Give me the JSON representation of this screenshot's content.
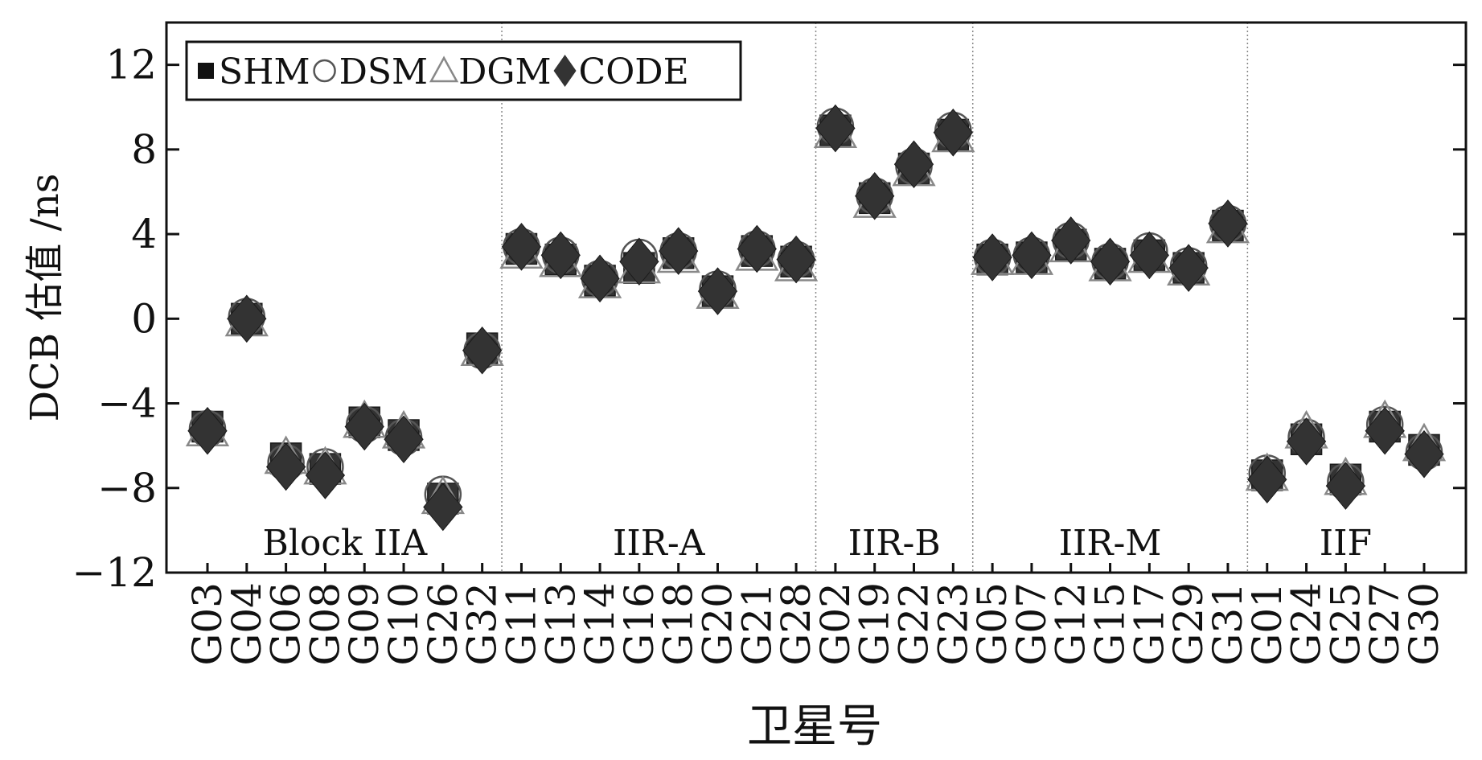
{
  "chart_data": {
    "type": "scatter",
    "title": "",
    "xlabel": "卫星号",
    "ylabel": "DCB 估值 /ns",
    "ylim": [
      -12,
      14
    ],
    "yticks": [
      -12,
      -8,
      -4,
      0,
      4,
      8,
      12
    ],
    "ytick_labels": [
      "−12",
      "−8",
      "−4",
      "0",
      "4",
      "8",
      "12"
    ],
    "grid": false,
    "legend_position": "top-left",
    "categories": [
      "G03",
      "G04",
      "G06",
      "G08",
      "G09",
      "G10",
      "G26",
      "G32",
      "G11",
      "G13",
      "G14",
      "G16",
      "G18",
      "G20",
      "G21",
      "G28",
      "G02",
      "G19",
      "G22",
      "G23",
      "G05",
      "G07",
      "G12",
      "G15",
      "G17",
      "G29",
      "G31",
      "G01",
      "G24",
      "G25",
      "G27",
      "G30"
    ],
    "groups": [
      {
        "label": "Block IIA",
        "start": 0,
        "end": 7
      },
      {
        "label": "IIR-A",
        "start": 8,
        "end": 15
      },
      {
        "label": "IIR-B",
        "start": 16,
        "end": 19
      },
      {
        "label": "IIR-M",
        "start": 20,
        "end": 26
      },
      {
        "label": "IIF",
        "start": 27,
        "end": 31
      }
    ],
    "series": [
      {
        "name": "SHM",
        "marker": "square",
        "values": [
          -5.1,
          0.0,
          -6.6,
          -7.1,
          -4.9,
          -5.5,
          -8.5,
          -1.4,
          3.3,
          2.8,
          1.8,
          2.4,
          3.1,
          1.3,
          3.2,
          2.7,
          8.9,
          5.7,
          7.1,
          8.7,
          2.8,
          2.9,
          3.5,
          2.6,
          3.0,
          2.4,
          4.4,
          -7.4,
          -5.7,
          -7.6,
          -5.1,
          -6.2
        ]
      },
      {
        "name": "DSM",
        "marker": "circle",
        "values": [
          -5.2,
          0.1,
          -6.8,
          -7.0,
          -5.0,
          -5.6,
          -8.3,
          -1.5,
          3.4,
          3.0,
          1.9,
          2.9,
          3.2,
          1.4,
          3.3,
          2.8,
          9.1,
          5.8,
          7.2,
          8.9,
          2.9,
          3.0,
          3.7,
          2.7,
          3.2,
          2.5,
          4.5,
          -7.3,
          -5.6,
          -7.7,
          -5.0,
          -6.3
        ]
      },
      {
        "name": "DGM",
        "marker": "triangle",
        "values": [
          -5.3,
          -0.1,
          -6.6,
          -7.1,
          -4.9,
          -5.4,
          -8.5,
          -1.5,
          3.1,
          2.7,
          1.7,
          2.4,
          2.9,
          1.2,
          3.0,
          2.5,
          8.8,
          5.5,
          7.0,
          8.6,
          2.8,
          2.8,
          3.4,
          2.5,
          2.9,
          2.3,
          4.3,
          -7.4,
          -5.4,
          -7.6,
          -4.9,
          -6.0
        ]
      },
      {
        "name": "CODE",
        "marker": "diamond",
        "values": [
          -5.3,
          0.0,
          -7.0,
          -7.4,
          -5.1,
          -5.7,
          -8.9,
          -1.5,
          3.4,
          3.0,
          1.9,
          2.7,
          3.2,
          1.3,
          3.3,
          2.8,
          9.0,
          5.8,
          7.3,
          8.8,
          2.9,
          3.0,
          3.7,
          2.7,
          3.0,
          2.4,
          4.5,
          -7.6,
          -5.8,
          -7.9,
          -5.3,
          -6.4
        ]
      }
    ]
  },
  "colors": {
    "axis": "#111111",
    "marker_dark": "#333333",
    "marker_dsm": "#555555",
    "marker_dgm": "#888888",
    "separator": "#888888"
  }
}
